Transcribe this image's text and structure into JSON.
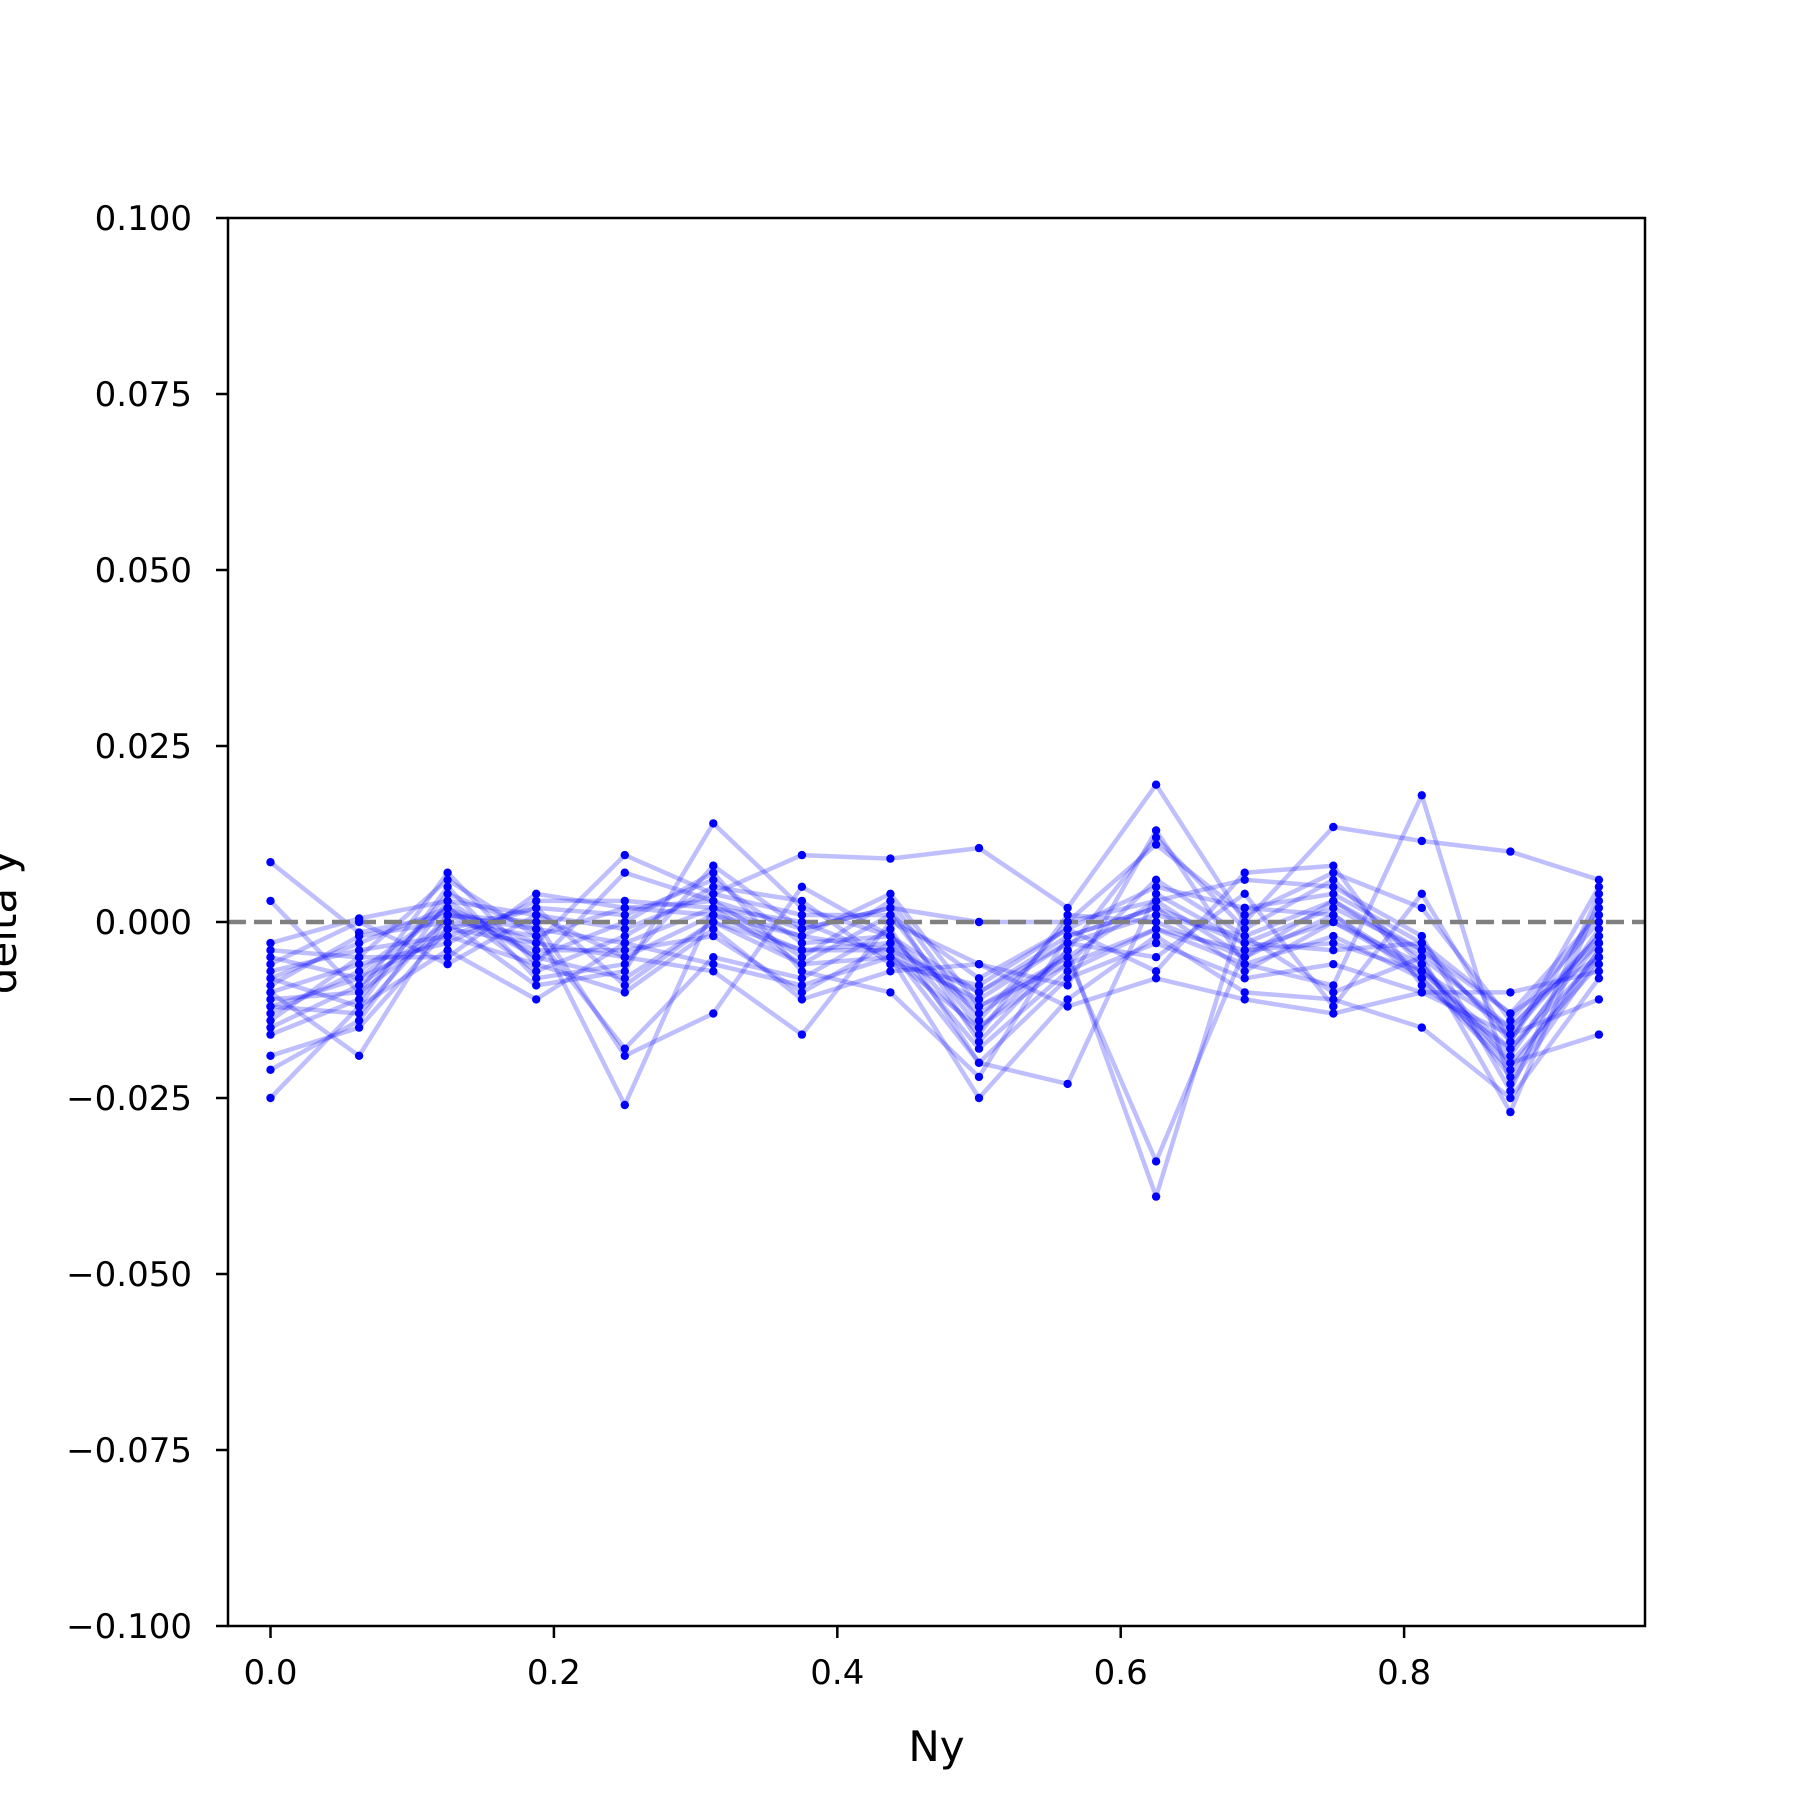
{
  "chart_data": {
    "type": "line",
    "xlabel": "Ny",
    "ylabel": "delta y",
    "xlim": [
      -0.03,
      0.97
    ],
    "ylim": [
      -0.1,
      0.1
    ],
    "x_ticks": [
      0.0,
      0.2,
      0.4,
      0.6,
      0.8
    ],
    "x_tick_labels": [
      "0.0",
      "0.2",
      "0.4",
      "0.6",
      "0.8"
    ],
    "y_ticks": [
      0.1,
      0.075,
      0.05,
      0.025,
      0.0,
      -0.025,
      -0.05,
      -0.075,
      -0.1
    ],
    "y_tick_labels": [
      "0.100",
      "0.075",
      "0.050",
      "0.025",
      "0.000",
      "−0.025",
      "−0.050",
      "−0.075",
      "−0.100"
    ],
    "reference_line": {
      "y": 0.0,
      "style": "dashed",
      "color": "#808080"
    },
    "series_color": "#0000ff",
    "series_line_alpha": 0.25,
    "grid": false,
    "x": [
      0.0,
      0.0625,
      0.125,
      0.1875,
      0.25,
      0.3125,
      0.375,
      0.4375,
      0.5,
      0.5625,
      0.625,
      0.6875,
      0.75,
      0.8125,
      0.875,
      0.9375
    ],
    "series": [
      {
        "values": [
          0.0085,
          -0.0015,
          0.001,
          -0.001,
          -0.003,
          0.002,
          -0.002,
          -0.004,
          -0.01,
          -0.003,
          0.001,
          -0.002,
          0.003,
          -0.005,
          -0.015,
          -0.003
        ]
      },
      {
        "values": [
          0.003,
          -0.01,
          -0.001,
          -0.003,
          -0.005,
          0.001,
          -0.004,
          -0.003,
          -0.012,
          -0.005,
          0.003,
          -0.005,
          0.001,
          -0.007,
          -0.018,
          -0.005
        ]
      },
      {
        "values": [
          -0.003,
          0.0005,
          0.003,
          0.001,
          -0.001,
          0.004,
          0.001,
          0.001,
          -0.008,
          -0.001,
          0.005,
          0.002,
          0.004,
          -0.003,
          -0.013,
          0.001
        ]
      },
      {
        "values": [
          -0.005,
          -0.008,
          0.002,
          -0.005,
          -0.008,
          0.0,
          -0.006,
          -0.005,
          -0.015,
          -0.006,
          -0.001,
          -0.006,
          -0.002,
          -0.008,
          -0.02,
          -0.006
        ]
      },
      {
        "values": [
          -0.007,
          -0.004,
          -0.002,
          0.002,
          0.001,
          0.006,
          -0.003,
          -0.002,
          -0.01,
          -0.002,
          0.002,
          -0.003,
          0.002,
          -0.004,
          -0.016,
          -0.002
        ]
      },
      {
        "values": [
          -0.008,
          -0.012,
          0.005,
          -0.008,
          -0.006,
          0.008,
          -0.001,
          0.002,
          -0.017,
          -0.004,
          0.012,
          -0.001,
          0.006,
          -0.006,
          -0.022,
          -0.004
        ]
      },
      {
        "values": [
          -0.009,
          -0.002,
          0.0,
          -0.002,
          -0.018,
          -0.005,
          -0.008,
          -0.001,
          -0.02,
          -0.008,
          -0.003,
          -0.008,
          -0.006,
          -0.01,
          -0.01,
          -0.007
        ]
      },
      {
        "values": [
          -0.01,
          -0.006,
          -0.003,
          0.003,
          0.003,
          0.002,
          0.0,
          -0.005,
          -0.011,
          -0.003,
          -0.005,
          0.004,
          -0.012,
          0.004,
          -0.017,
          0.005
        ]
      },
      {
        "values": [
          -0.011,
          -0.01,
          0.007,
          -0.006,
          0.007,
          0.003,
          -0.005,
          0.003,
          -0.014,
          0.0,
          0.003,
          0.006,
          0.005,
          -0.002,
          -0.024,
          0.004
        ]
      },
      {
        "values": [
          -0.012,
          -0.013,
          0.001,
          -0.004,
          -0.004,
          -0.002,
          -0.01,
          -0.003,
          -0.018,
          -0.007,
          -0.001,
          -0.004,
          -0.003,
          -0.007,
          -0.015,
          -0.002
        ]
      },
      {
        "values": [
          -0.013,
          -0.007,
          0.002,
          -0.007,
          -0.002,
          0.005,
          0.003,
          -0.006,
          -0.009,
          -0.001,
          -0.007,
          0.007,
          0.008,
          -0.009,
          -0.018,
          -0.003
        ]
      },
      {
        "values": [
          -0.014,
          -0.005,
          -0.005,
          0.004,
          0.002,
          0.001,
          -0.002,
          0.004,
          -0.012,
          -0.006,
          0.006,
          -0.002,
          -0.01,
          -0.005,
          -0.027,
          0.003
        ]
      },
      {
        "values": [
          -0.015,
          -0.009,
          0.0,
          -0.009,
          -0.007,
          0.014,
          0.002,
          -0.002,
          -0.016,
          0.001,
          0.0,
          -0.005,
          0.003,
          -0.004,
          -0.013,
          -0.005
        ]
      },
      {
        "values": [
          -0.016,
          -0.011,
          0.004,
          -0.001,
          -0.026,
          0.002,
          -0.006,
          0.001,
          -0.015,
          -0.004,
          -0.039,
          0.002,
          0.001,
          -0.008,
          -0.021,
          -0.004
        ]
      },
      {
        "values": [
          -0.019,
          -0.015,
          -0.001,
          0.002,
          -0.009,
          0.0,
          -0.004,
          -0.004,
          -0.02,
          -0.023,
          0.004,
          -0.003,
          -0.004,
          -0.003,
          -0.017,
          0.002
        ]
      },
      {
        "values": [
          -0.021,
          -0.014,
          0.003,
          -0.005,
          0.0,
          0.007,
          -0.007,
          -0.01,
          -0.022,
          -0.002,
          0.002,
          -0.007,
          0.0,
          -0.006,
          -0.02,
          -0.016
        ]
      },
      {
        "values": [
          -0.025,
          -0.012,
          -0.004,
          -0.011,
          -0.003,
          -0.006,
          -0.009,
          -0.005,
          -0.025,
          -0.011,
          -0.002,
          -0.01,
          -0.011,
          -0.015,
          -0.025,
          -0.008
        ]
      },
      {
        "values": [
          -0.01,
          -0.019,
          0.001,
          0.0,
          -0.019,
          -0.013,
          0.005,
          -0.002,
          -0.013,
          -0.005,
          -0.034,
          -0.004,
          0.0,
          -0.007,
          -0.019,
          -0.001
        ]
      },
      {
        "values": [
          -0.006,
          0.0,
          -0.006,
          0.001,
          -0.005,
          -0.007,
          -0.016,
          0.0,
          -0.006,
          -0.009,
          0.013,
          -0.006,
          -0.009,
          0.018,
          -0.023,
          -0.005
        ]
      },
      {
        "values": [
          -0.008,
          -0.003,
          0.002,
          -0.003,
          0.0095,
          0.004,
          0.0095,
          0.009,
          0.0105,
          0.002,
          0.0195,
          0.0,
          0.0135,
          0.0115,
          0.01,
          0.006
        ]
      },
      {
        "values": [
          -0.012,
          -0.008,
          -0.002,
          -0.006,
          -0.01,
          -0.001,
          -0.011,
          -0.007,
          -0.006,
          -0.012,
          -0.008,
          -0.011,
          -0.013,
          -0.01,
          -0.016,
          -0.011
        ]
      },
      {
        "values": [
          -0.004,
          -0.005,
          0.006,
          -0.002,
          0.002,
          0.003,
          -0.001,
          0.002,
          0.0,
          0.0,
          0.011,
          0.001,
          0.007,
          0.002,
          -0.014,
          0.0
        ]
      }
    ]
  }
}
